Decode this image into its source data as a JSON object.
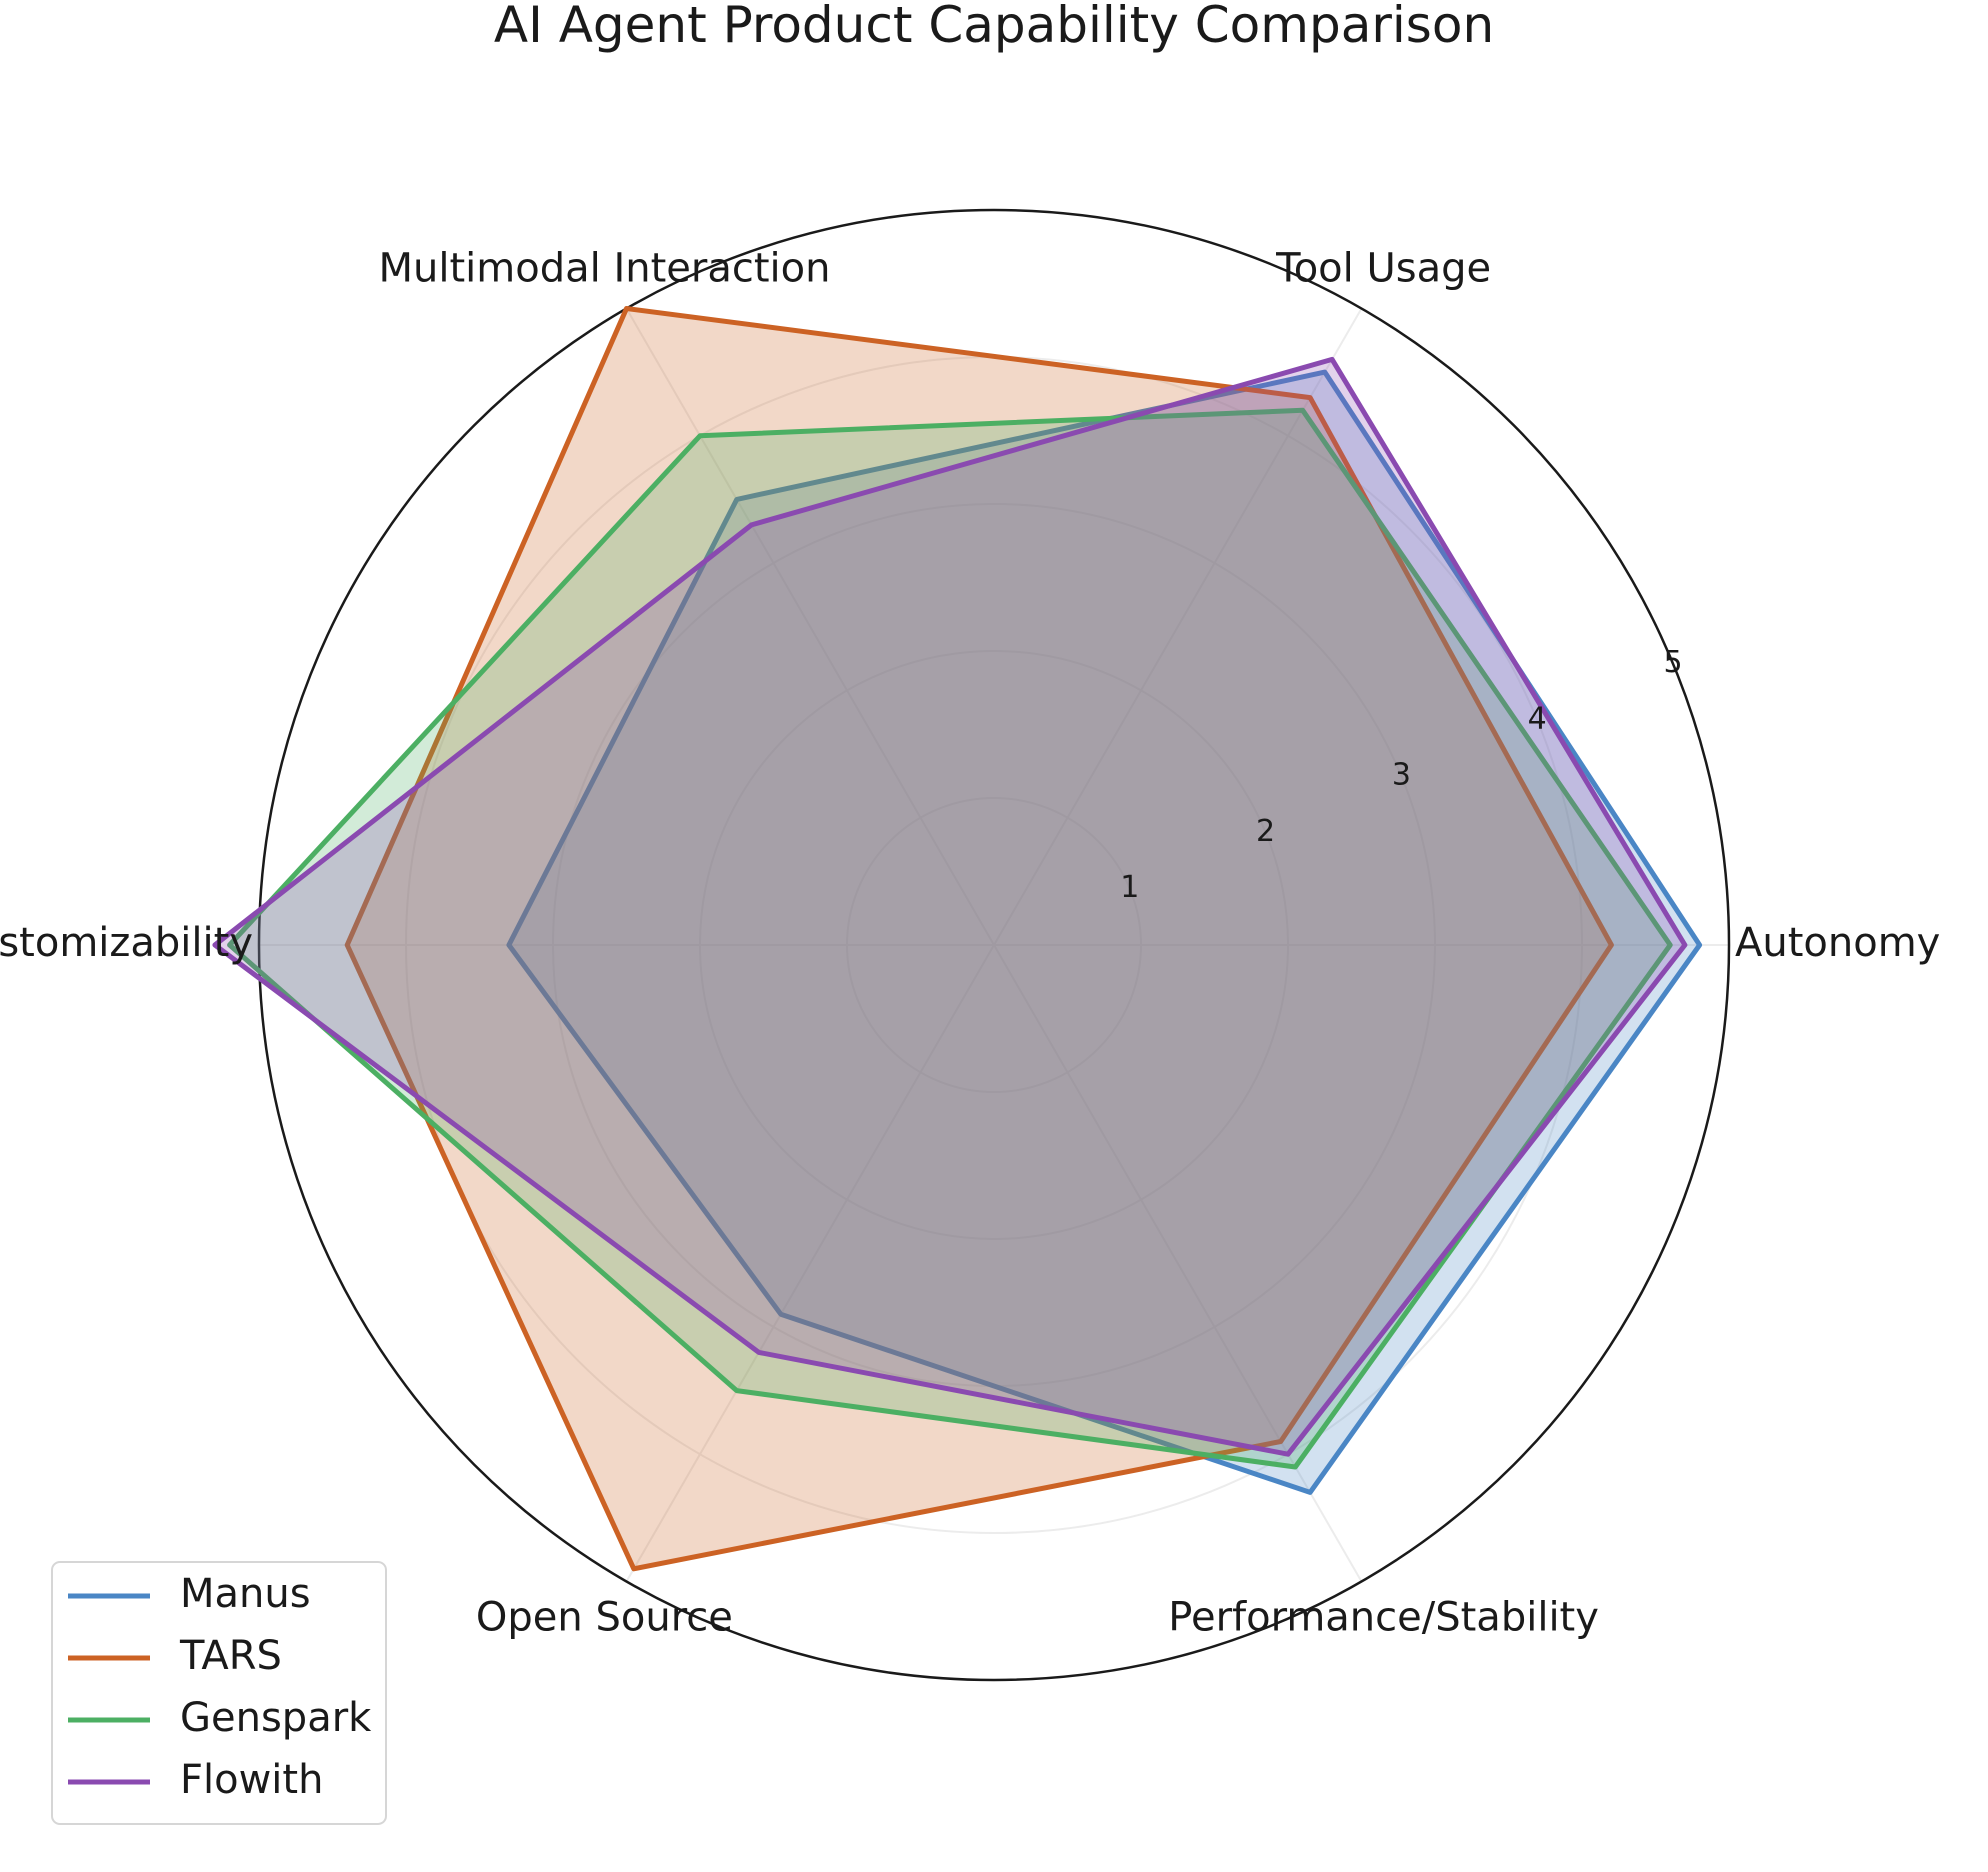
{
  "chart_data": {
    "type": "radar",
    "title": "AI Agent Product Capability Comparison",
    "categories": [
      "Autonomy",
      "Tool Usage",
      "Multimodal Interaction",
      "Customizability",
      "Open Source",
      "Performance/Stability"
    ],
    "rlim": [
      0,
      5
    ],
    "rticks": [
      1,
      2,
      3,
      4,
      5
    ],
    "grid": true,
    "legend_position": "lower-left",
    "series": [
      {
        "name": "Manus",
        "color": "#4a86c5",
        "values": [
          4.8,
          4.5,
          3.5,
          3.3,
          2.9,
          4.3
        ]
      },
      {
        "name": "TARS",
        "color": "#cc6224",
        "values": [
          4.2,
          4.3,
          5.0,
          4.4,
          4.9,
          3.9
        ]
      },
      {
        "name": "Genspark",
        "color": "#4caf63",
        "values": [
          4.6,
          4.2,
          4.0,
          5.2,
          3.5,
          4.1
        ]
      },
      {
        "name": "Flowith",
        "color": "#8a4ab0",
        "values": [
          4.7,
          4.6,
          3.3,
          5.3,
          3.2,
          4.0
        ]
      }
    ]
  }
}
